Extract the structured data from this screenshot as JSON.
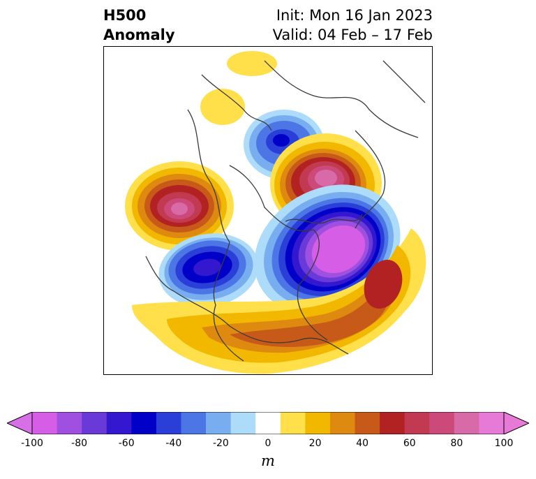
{
  "title": {
    "left_line1": "H500",
    "left_line2": "Anomaly",
    "init": "Init: Mon 16 Jan 2023",
    "valid": "Valid: 04 Feb – 17 Feb"
  },
  "map": {
    "projection": "polar",
    "field": "500 hPa height anomaly"
  },
  "colorbar": {
    "unit": "m",
    "extend": "both",
    "levels": [
      -100,
      -90,
      -80,
      -70,
      -60,
      -50,
      -40,
      -30,
      -20,
      -10,
      10,
      20,
      30,
      40,
      50,
      60,
      70,
      80,
      90,
      100
    ],
    "colors": [
      "#d65ee6",
      "#a050e0",
      "#6a3ad8",
      "#3418d0",
      "#0000c8",
      "#2a3fd8",
      "#4c76e6",
      "#78aef0",
      "#acdcfa",
      "#ffffff",
      "#ffe04a",
      "#f2b800",
      "#de8a10",
      "#c75a18",
      "#b22222",
      "#c23a52",
      "#cc4a7a",
      "#d86aa8",
      "#e67ad6"
    ],
    "under_color": "#d770e6",
    "over_color": "#e67ad6",
    "ticks": [
      "-100",
      "-80",
      "-60",
      "-40",
      "-20",
      "0",
      "20",
      "40",
      "60",
      "80",
      "100"
    ]
  }
}
